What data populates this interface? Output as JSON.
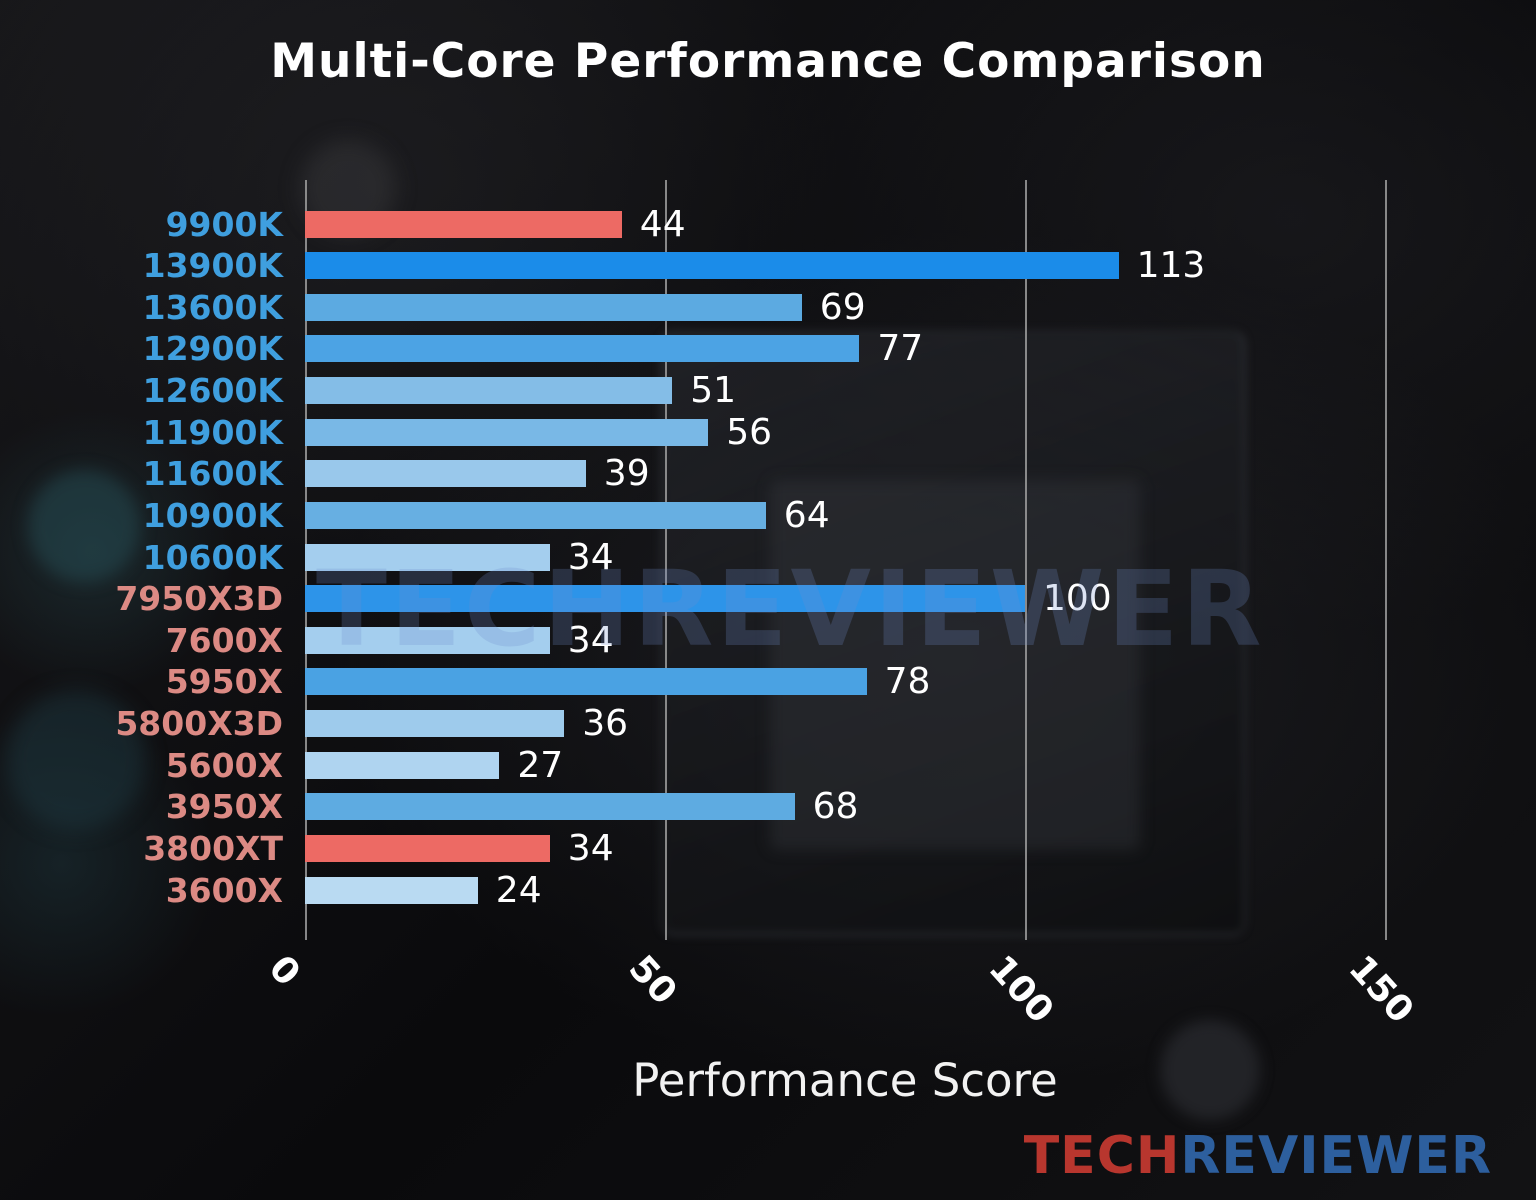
{
  "chart_data": {
    "type": "bar",
    "orientation": "horizontal",
    "title": "Multi-Core Performance Comparison",
    "xlabel": "Performance Score",
    "xlim": [
      0,
      150
    ],
    "xticks": [
      0,
      50,
      100,
      150
    ],
    "grid": "vertical",
    "legend": "none",
    "categories": [
      "9900K",
      "13900K",
      "13600K",
      "12900K",
      "12600K",
      "11900K",
      "11600K",
      "10900K",
      "10600K",
      "7950X3D",
      "7600X",
      "5950X",
      "5800X3D",
      "5600X",
      "3950X",
      "3800XT",
      "3600X"
    ],
    "values": [
      44,
      113,
      69,
      77,
      51,
      56,
      39,
      64,
      34,
      100,
      34,
      78,
      36,
      27,
      68,
      34,
      24
    ],
    "bar_colors": [
      "#ed6a64",
      "#1b8ce9",
      "#5caae1",
      "#4ca3e4",
      "#84bde7",
      "#79b8e6",
      "#99c8eb",
      "#67afe2",
      "#a4ceee",
      "#2d94e9",
      "#a4ceee",
      "#4aa2e3",
      "#9ecbec",
      "#afd4f0",
      "#5eabe1",
      "#ed6a64",
      "#b9daf2"
    ],
    "label_colors": [
      "#3f9fdf",
      "#3f9fdf",
      "#3f9fdf",
      "#3f9fdf",
      "#3f9fdf",
      "#3f9fdf",
      "#3f9fdf",
      "#3f9fdf",
      "#3f9fdf",
      "#dc8a84",
      "#dc8a84",
      "#dc8a84",
      "#dc8a84",
      "#dc8a84",
      "#dc8a84",
      "#dc8a84",
      "#dc8a84"
    ]
  },
  "watermark": "TECHREVIEWER",
  "logo": {
    "part1": "TECH",
    "part2": "REVIEWER",
    "part1_color": "#b8362e",
    "part2_color": "#2d5f9e"
  },
  "colors": {
    "gridline": "#9c9c9c",
    "value_text": "#ffffff",
    "tick_text": "#ffffff",
    "title_text": "#ffffff",
    "highlight_bar": "#ed6a64"
  }
}
